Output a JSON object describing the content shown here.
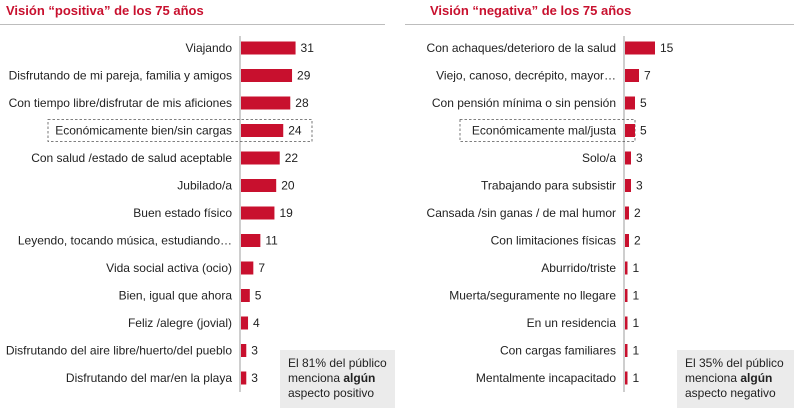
{
  "chart_data": [
    {
      "type": "bar",
      "orientation": "horizontal",
      "title": "Visión “positiva” de los 75 años",
      "categories": [
        "Viajando",
        "Disfrutando de mi pareja, familia y amigos",
        "Con tiempo libre/disfrutar de mis aficiones",
        "Económicamente bien/sin cargas",
        "Con salud /estado de salud aceptable",
        "Jubilado/a",
        "Buen estado físico",
        "Leyendo, tocando música, estudiando…",
        "Vida social activa (ocio)",
        "Bien, igual que ahora",
        "Feliz /alegre (jovial)",
        "Disfrutando del aire libre/huerto/del pueblo",
        "Disfrutando del mar/en la playa"
      ],
      "values": [
        31,
        29,
        28,
        24,
        22,
        20,
        19,
        11,
        7,
        5,
        4,
        3,
        3
      ],
      "highlighted_category": "Económicamente bien/sin cargas",
      "bar_color": "#c8102e",
      "note": {
        "pre": "El 81% del público menciona ",
        "bold": "algún",
        "post": " aspecto positivo"
      }
    },
    {
      "type": "bar",
      "orientation": "horizontal",
      "title": "Visión “negativa” de los 75 años",
      "categories": [
        "Con achaques/deterioro de la salud",
        "Viejo, canoso, decrépito, mayor…",
        "Con pensión mínima o sin pensión",
        "Económicamente mal/justa",
        "Solo/a",
        "Trabajando para subsistir",
        "Cansada /sin ganas / de mal humor",
        "Con limitaciones físicas",
        "Aburrido/triste",
        "Muerta/seguramente no llegare",
        "En un residencia",
        "Con cargas familiares",
        "Mentalmente incapacitado"
      ],
      "values": [
        15,
        7,
        5,
        5,
        3,
        3,
        2,
        2,
        1,
        1,
        1,
        1,
        1
      ],
      "highlighted_category": "Económicamente mal/justa",
      "bar_color": "#c8102e",
      "note": {
        "pre": "El 35% del público menciona ",
        "bold": "algún",
        "post": " aspecto negativo"
      }
    }
  ]
}
